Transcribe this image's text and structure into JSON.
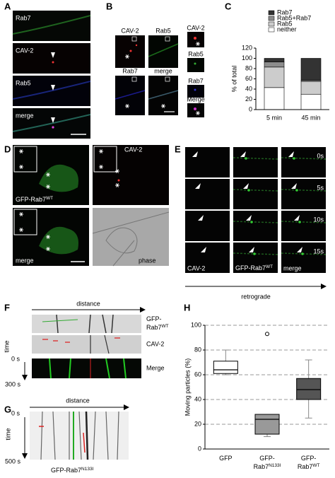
{
  "panels": {
    "A": {
      "label": "A",
      "rows": [
        "Rab7",
        "CAV-2",
        "Rab5",
        "merge"
      ]
    },
    "B": {
      "label": "B",
      "channels": [
        "CAV-2",
        "Rab5",
        "Rab7",
        "merge"
      ],
      "insets": [
        "CAV-2",
        "Rab5",
        "Rab7",
        "Merge"
      ]
    },
    "C": {
      "label": "C"
    },
    "D": {
      "label": "D",
      "gfp": [
        "GFP-Rab7",
        "WT"
      ],
      "cav": "CAV-2",
      "merge": "merge",
      "phase": "phase"
    },
    "E": {
      "label": "E",
      "times": [
        "0s",
        "5s",
        "10s",
        "15s"
      ],
      "cav": "CAV-2",
      "gfp": [
        "GFP-Rab7",
        "WT"
      ],
      "merge": "merge",
      "arrow": "retrograde"
    },
    "F": {
      "label": "F",
      "distance": "distance",
      "time": "time",
      "start": "0 s",
      "end": "300 s",
      "gfp": [
        "GFP-",
        "Rab7",
        "WT"
      ],
      "cav": "CAV-2",
      "merge": "Merge"
    },
    "G": {
      "label": "G",
      "distance": "distance",
      "time": "time",
      "start": "0 s",
      "end": "500 s",
      "caption": [
        "GFP-Rab7",
        "N133I"
      ]
    },
    "H": {
      "label": "H"
    }
  },
  "chart_data": [
    {
      "type": "bar",
      "stacked": true,
      "ylabel": "% of total",
      "categories": [
        "5 min",
        "45 min"
      ],
      "series": [
        {
          "name": "Rab7",
          "color": "#333333",
          "values": [
            7,
            43
          ]
        },
        {
          "name": "Rab5+Rab7",
          "color": "#8c8c8c",
          "values": [
            10,
            2
          ]
        },
        {
          "name": "Rab5",
          "color": "#cccccc",
          "values": [
            40,
            25
          ]
        },
        {
          "name": "neither",
          "color": "#ffffff",
          "values": [
            43,
            30
          ]
        }
      ],
      "ylim": [
        0,
        120
      ],
      "yticks": [
        0,
        20,
        40,
        60,
        80,
        100,
        120
      ]
    },
    {
      "type": "box",
      "ylabel": "Moving particles (%)",
      "categories": [
        [
          "GFP"
        ],
        [
          "GFP-",
          "Rab7",
          "N133I"
        ],
        [
          "GFP-",
          "Rab7",
          "WT"
        ]
      ],
      "colors": [
        "#ffffff",
        "#999999",
        "#555555"
      ],
      "boxes": [
        {
          "min": 60,
          "q1": 61,
          "median": 64,
          "q3": 71,
          "max": 80
        },
        {
          "min": 10,
          "q1": 12,
          "median": 24,
          "q3": 28,
          "max": 28,
          "outliers": [
            93
          ]
        },
        {
          "min": 25,
          "q1": 40,
          "median": 48,
          "q3": 57,
          "max": 72
        }
      ],
      "ylim": [
        0,
        100
      ],
      "yticks": [
        0,
        20,
        40,
        60,
        80,
        100
      ],
      "grid": true
    }
  ]
}
